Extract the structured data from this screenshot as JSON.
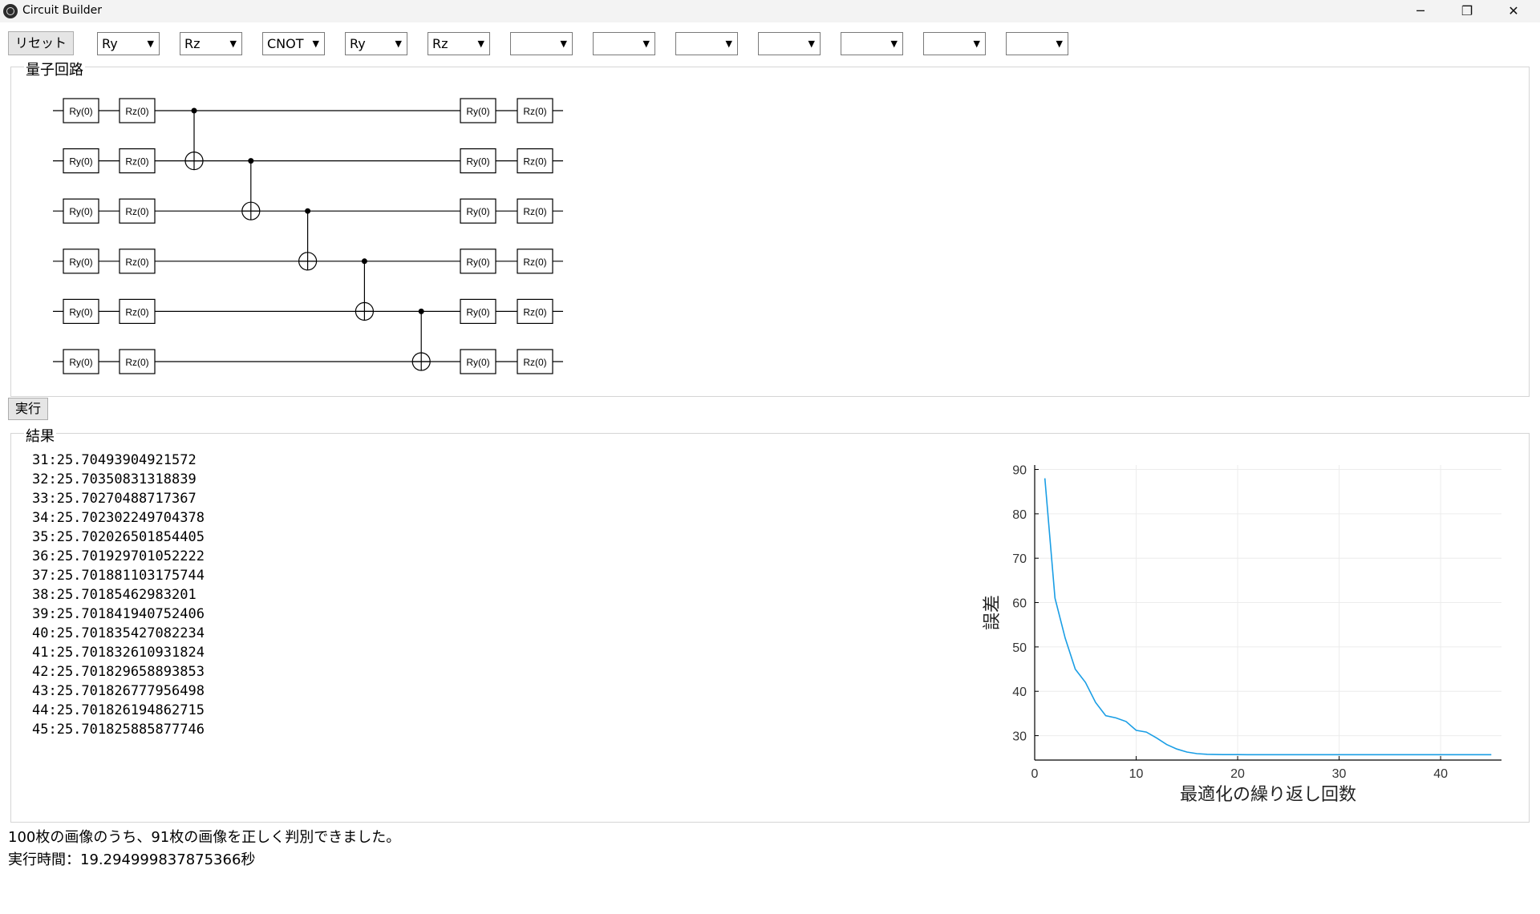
{
  "window": {
    "title": "Circuit Builder",
    "minimize": "─",
    "maximize": "❐",
    "close": "✕"
  },
  "toolbar": {
    "reset_label": "リセット",
    "gates": [
      "Ry",
      "Rz",
      "CNOT",
      "Ry",
      "Rz",
      "",
      "",
      "",
      "",
      "",
      "",
      ""
    ]
  },
  "circuit": {
    "legend": "量子回路",
    "qubits": 6,
    "gate_labels": [
      "Ry(0)",
      "Rz(0)",
      "Ry(0)",
      "Rz(0)"
    ]
  },
  "run_label": "実行",
  "result": {
    "legend": "結果",
    "lines": [
      "31:25.70493904921572",
      "32:25.70350831318839",
      "33:25.70270488717367",
      "34:25.702302249704378",
      "35:25.702026501854405",
      "36:25.701929701052222",
      "37:25.701881103175744",
      "38:25.70185462983201",
      "39:25.701841940752406",
      "40:25.701835427082234",
      "41:25.701832610931824",
      "42:25.701829658893853",
      "43:25.701826777956498",
      "44:25.701826194862715",
      "45:25.701825885877746"
    ]
  },
  "chart_data": {
    "type": "line",
    "xlabel": "最適化の繰り返し回数",
    "ylabel": "誤差",
    "xlim": [
      0,
      46
    ],
    "ylim": [
      24.5,
      91
    ],
    "xticks": [
      0,
      10,
      20,
      30,
      40
    ],
    "yticks": [
      30,
      40,
      50,
      60,
      70,
      80,
      90
    ],
    "grid": true,
    "color": "#1a9ee5",
    "series": [
      {
        "x": [
          1,
          2,
          3,
          4,
          5,
          6,
          7,
          8,
          9,
          10,
          11,
          12,
          13,
          14,
          15,
          16,
          17,
          18,
          19,
          20,
          21,
          22,
          23,
          24,
          25,
          26,
          27,
          28,
          29,
          30,
          31,
          32,
          33,
          34,
          35,
          36,
          37,
          38,
          39,
          40,
          41,
          42,
          43,
          44,
          45
        ],
        "y": [
          88,
          61,
          52,
          45,
          42,
          37.5,
          34.5,
          34,
          33.2,
          31.2,
          30.8,
          29.5,
          28,
          27,
          26.3,
          25.95,
          25.8,
          25.75,
          25.73,
          25.72,
          25.715,
          25.712,
          25.71,
          25.709,
          25.708,
          25.707,
          25.706,
          25.706,
          25.705,
          25.705,
          25.705,
          25.704,
          25.703,
          25.702,
          25.702,
          25.702,
          25.702,
          25.702,
          25.702,
          25.702,
          25.702,
          25.702,
          25.702,
          25.702,
          25.702
        ]
      }
    ]
  },
  "status": {
    "accuracy": "100枚の画像のうち、91枚の画像を正しく判別できました。",
    "time": "実行時間：19.294999837875366秒"
  }
}
